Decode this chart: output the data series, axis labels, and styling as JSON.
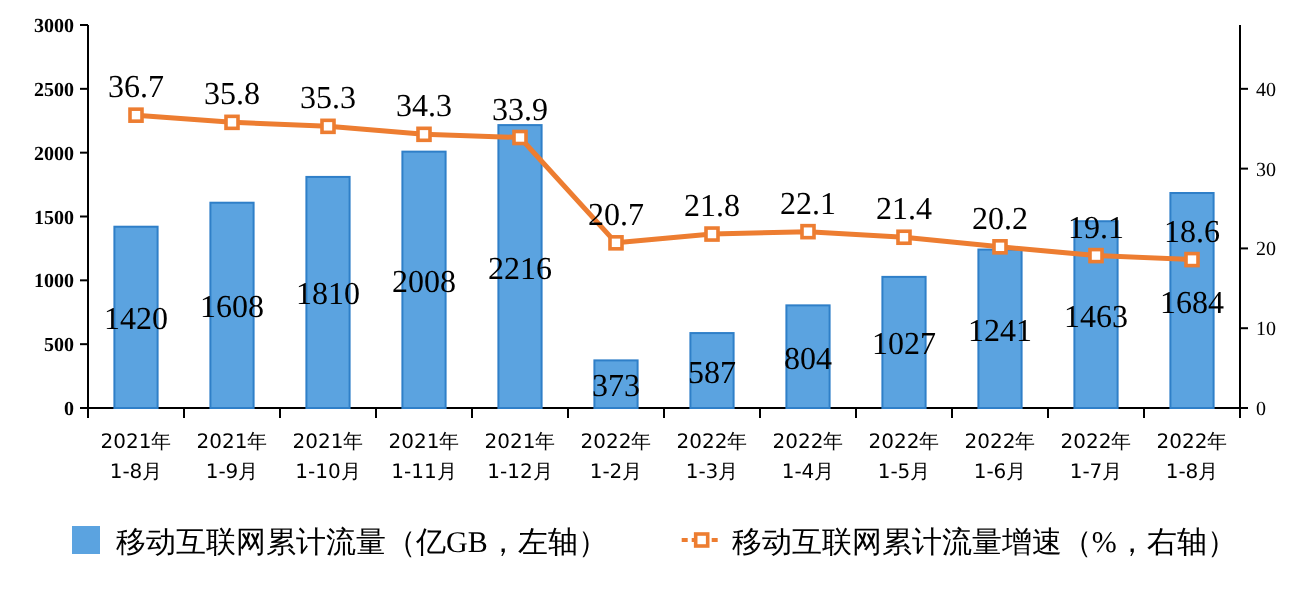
{
  "chart_data": {
    "type": "bar",
    "categories": [
      "2021年\n1-8月",
      "2021年\n1-9月",
      "2021年\n1-10月",
      "2021年\n1-11月",
      "2021年\n1-12月",
      "2022年\n1-2月",
      "2022年\n1-3月",
      "2022年\n1-4月",
      "2022年\n1-5月",
      "2022年\n1-6月",
      "2022年\n1-7月",
      "2022年\n1-8月"
    ],
    "series": [
      {
        "name": "移动互联网累计流量（亿GB，左轴）",
        "color": "#5ba3e0",
        "values": [
          1420,
          1608,
          1810,
          2008,
          2216,
          373,
          587,
          804,
          1027,
          1241,
          1463,
          1684
        ]
      },
      {
        "name": "移动互联网累计流量增速（%，右轴）",
        "type": "line",
        "axis": "y2",
        "color": "#ed7d31",
        "values": [
          36.7,
          35.8,
          35.3,
          34.3,
          33.9,
          20.7,
          21.8,
          22.1,
          21.4,
          20.2,
          19.1,
          18.6
        ]
      }
    ],
    "ylim": [
      0,
      3000
    ],
    "yticks": [
      0,
      500,
      1000,
      1500,
      2000,
      2500,
      3000
    ],
    "y2lim": [
      0,
      48
    ],
    "y2ticks": [
      0,
      10,
      20,
      30,
      40
    ],
    "data_labels": true,
    "legend": "bottom",
    "marker": "square"
  }
}
